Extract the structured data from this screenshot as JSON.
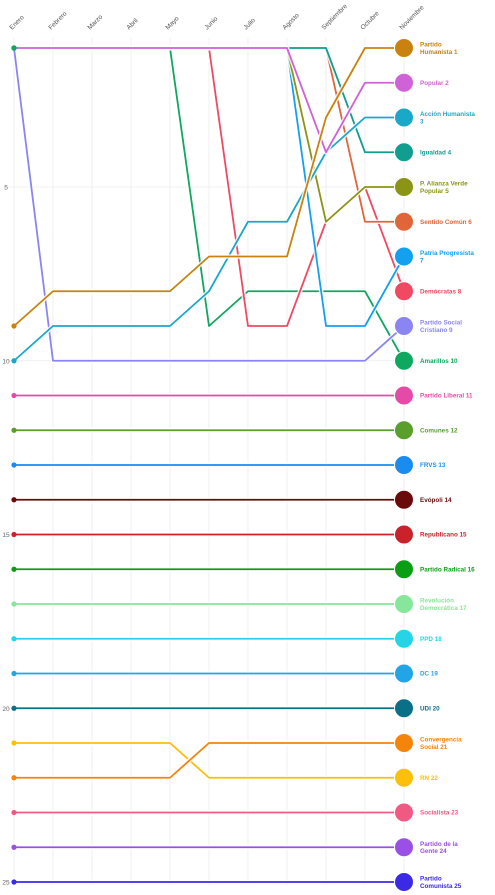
{
  "chart_data": {
    "type": "bump",
    "months": [
      "Enero",
      "Febrero",
      "Marzo",
      "Abril",
      "Mayo",
      "Junio",
      "Julio",
      "Agosto",
      "Septiembre",
      "Octubre",
      "Noviembre"
    ],
    "y_ticks": [
      5,
      10,
      15,
      20,
      25
    ],
    "ylim": [
      1,
      25
    ],
    "grid": true,
    "series": [
      {
        "name": "Partido Humanista",
        "label": [
          "Partido",
          "Humanista 1"
        ],
        "color": "#c9820e",
        "ranks": [
          9,
          8,
          8,
          8,
          8,
          7,
          7,
          7,
          3,
          1,
          1
        ]
      },
      {
        "name": "Popular",
        "label": [
          "Popular 2"
        ],
        "color": "#cf62d6",
        "ranks": [
          1,
          1,
          1,
          1,
          1,
          1,
          1,
          1,
          4,
          2,
          2
        ]
      },
      {
        "name": "Acción Humanista",
        "label": [
          "Acción Humanista",
          "3"
        ],
        "color": "#1aa8c9",
        "ranks": [
          10,
          9,
          9,
          9,
          9,
          8,
          6,
          6,
          4,
          3,
          3
        ]
      },
      {
        "name": "Igualdad",
        "label": [
          "Igualdad 4"
        ],
        "color": "#0f9e90",
        "ranks": [
          1,
          1,
          1,
          1,
          1,
          1,
          1,
          1,
          1,
          4,
          4
        ]
      },
      {
        "name": "P. Alianza Verde Popular",
        "label": [
          "P. Alianza Verde",
          "Popular 5"
        ],
        "color": "#8a9515",
        "ranks": [
          1,
          1,
          1,
          1,
          1,
          1,
          1,
          1,
          6,
          5,
          5
        ]
      },
      {
        "name": "Sentido Común",
        "label": [
          "Sentido Común 6"
        ],
        "color": "#e0663a",
        "ranks": [
          1,
          1,
          1,
          1,
          1,
          1,
          1,
          1,
          1,
          6,
          6
        ]
      },
      {
        "name": "Patria Progresista",
        "label": [
          "Patria Progresista",
          "7"
        ],
        "color": "#14a0f0",
        "ranks": [
          1,
          1,
          1,
          1,
          1,
          1,
          1,
          1,
          9,
          9,
          7
        ]
      },
      {
        "name": "Demócratas",
        "label": [
          "Demócratas 8"
        ],
        "color": "#f04a63",
        "ranks": [
          1,
          1,
          1,
          1,
          1,
          1,
          9,
          9,
          6,
          5,
          8
        ]
      },
      {
        "name": "Partido Social Cristiano",
        "label": [
          "Partido Social",
          "Cristiano 9"
        ],
        "color": "#8a85f2",
        "ranks": [
          1,
          10,
          10,
          10,
          10,
          10,
          10,
          10,
          10,
          10,
          9
        ]
      },
      {
        "name": "Amarillos",
        "label": [
          "Amarillos 10"
        ],
        "color": "#0fa860",
        "ranks": [
          1,
          1,
          1,
          1,
          1,
          9,
          8,
          8,
          8,
          8,
          10
        ]
      },
      {
        "name": "Partido Liberal",
        "label": [
          "Partido Liberal 11"
        ],
        "color": "#e64aa8",
        "ranks": [
          11,
          11,
          11,
          11,
          11,
          11,
          11,
          11,
          11,
          11,
          11
        ]
      },
      {
        "name": "Comunes",
        "label": [
          "Comunes 12"
        ],
        "color": "#5a9e2c",
        "ranks": [
          12,
          12,
          12,
          12,
          12,
          12,
          12,
          12,
          12,
          12,
          12
        ]
      },
      {
        "name": "FRVS",
        "label": [
          "FRVS 13"
        ],
        "color": "#1a8cf0",
        "ranks": [
          13,
          13,
          13,
          13,
          13,
          13,
          13,
          13,
          13,
          13,
          13
        ]
      },
      {
        "name": "Evópoli",
        "label": [
          "Evópoli 14"
        ],
        "color": "#6b0a0a",
        "ranks": [
          14,
          14,
          14,
          14,
          14,
          14,
          14,
          14,
          14,
          14,
          14
        ]
      },
      {
        "name": "Republicano",
        "label": [
          "Republicano 15"
        ],
        "color": "#c9222b",
        "ranks": [
          15,
          15,
          15,
          15,
          15,
          15,
          15,
          15,
          15,
          15,
          15
        ]
      },
      {
        "name": "Partido Radical",
        "label": [
          "Partido Radical 16"
        ],
        "color": "#0a9e14",
        "ranks": [
          16,
          16,
          16,
          16,
          16,
          16,
          16,
          16,
          16,
          16,
          16
        ]
      },
      {
        "name": "Revolución Democrática",
        "label": [
          "Revolución",
          "Democrática 17"
        ],
        "color": "#86e69a",
        "ranks": [
          17,
          17,
          17,
          17,
          17,
          17,
          17,
          17,
          17,
          17,
          17
        ]
      },
      {
        "name": "PPD",
        "label": [
          "PPD 18"
        ],
        "color": "#25d4e6",
        "ranks": [
          18,
          18,
          18,
          18,
          18,
          18,
          18,
          18,
          18,
          18,
          18
        ]
      },
      {
        "name": "DC",
        "label": [
          "DC 19"
        ],
        "color": "#22a5e6",
        "ranks": [
          19,
          19,
          19,
          19,
          19,
          19,
          19,
          19,
          19,
          19,
          19
        ]
      },
      {
        "name": "UDI",
        "label": [
          "UDI 20"
        ],
        "color": "#0a7088",
        "ranks": [
          20,
          20,
          20,
          20,
          20,
          20,
          20,
          20,
          20,
          20,
          20
        ]
      },
      {
        "name": "Convergencia Social",
        "label": [
          "Convergencia",
          "Social 21"
        ],
        "color": "#f5840a",
        "ranks": [
          22,
          22,
          22,
          22,
          22,
          21,
          21,
          21,
          21,
          21,
          21
        ]
      },
      {
        "name": "RN",
        "label": [
          "RN 22"
        ],
        "color": "#fcbf0a",
        "ranks": [
          21,
          21,
          21,
          21,
          21,
          22,
          22,
          22,
          22,
          22,
          22
        ]
      },
      {
        "name": "Socialista",
        "label": [
          "Socialista 23"
        ],
        "color": "#f05a82",
        "ranks": [
          23,
          23,
          23,
          23,
          23,
          23,
          23,
          23,
          23,
          23,
          23
        ]
      },
      {
        "name": "Partido de la Gente",
        "label": [
          "Partido de la",
          "Gente 24"
        ],
        "color": "#9a50e6",
        "ranks": [
          24,
          24,
          24,
          24,
          24,
          24,
          24,
          24,
          24,
          24,
          24
        ]
      },
      {
        "name": "Partido Comunista",
        "label": [
          "Partido",
          "Comunista 25"
        ],
        "color": "#3a2ae6",
        "ranks": [
          25,
          25,
          25,
          25,
          25,
          25,
          25,
          25,
          25,
          25,
          25
        ]
      }
    ]
  }
}
